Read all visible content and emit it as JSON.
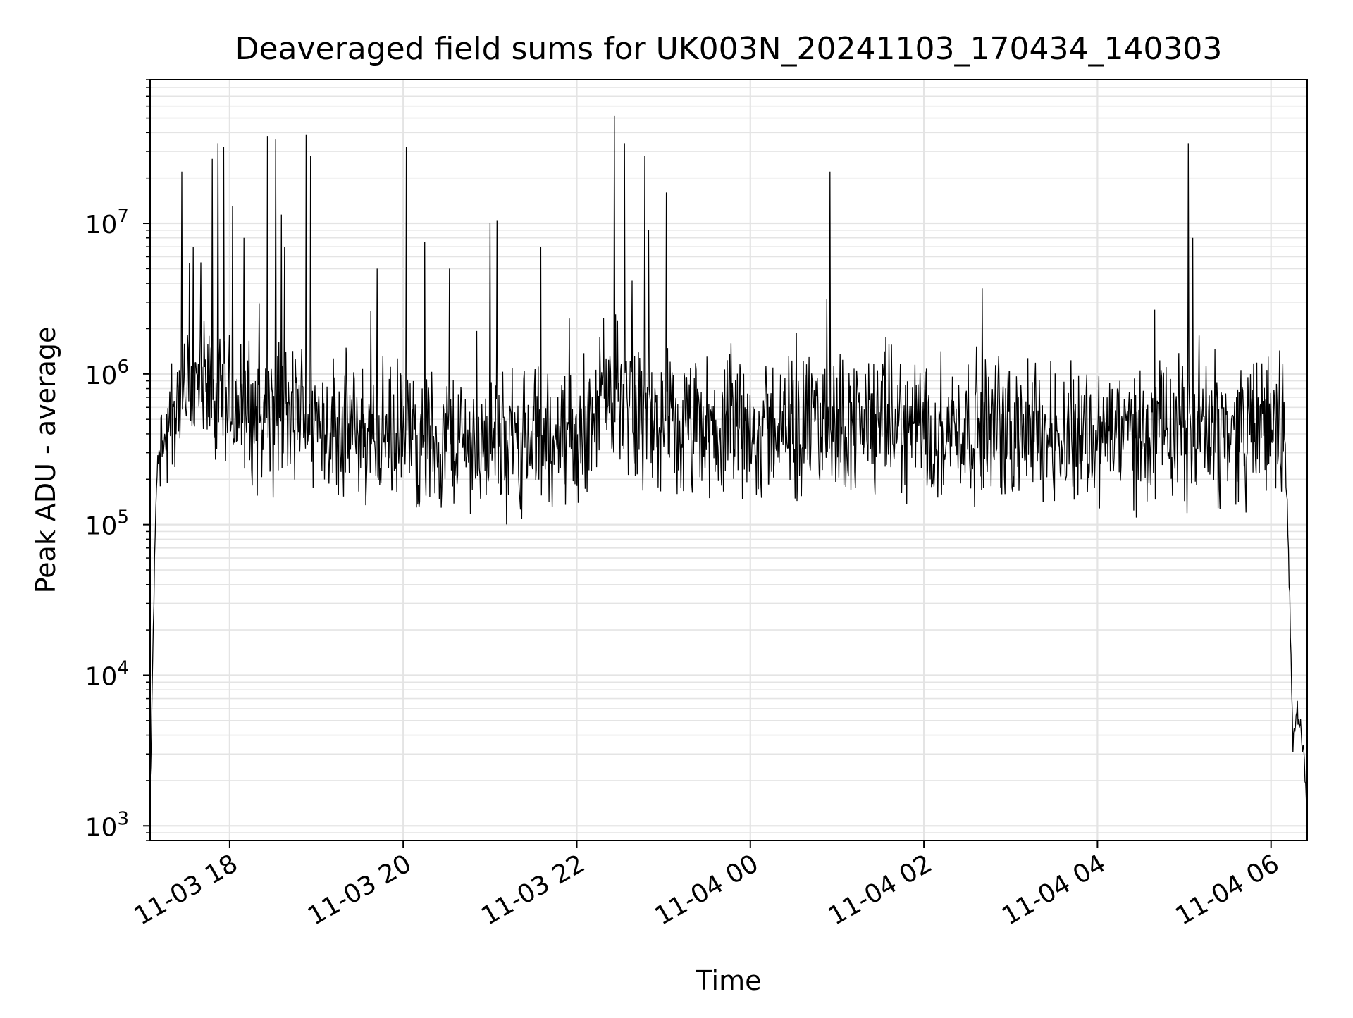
{
  "chart_data": {
    "type": "line",
    "title": "Deaveraged field sums for UK003N_20241103_170434_140303",
    "xlabel": "Time",
    "ylabel": "Peak ADU - average",
    "yscale": "log",
    "ylim": [
      800,
      90000000
    ],
    "xlim": [
      "2024-11-03 17:05",
      "2024-11-04 06:25"
    ],
    "x_tick_labels": [
      "11-03 18",
      "11-03 20",
      "11-03 22",
      "11-04 00",
      "11-04 02",
      "11-04 04",
      "11-04 06"
    ],
    "x_ticks": [
      "2024-11-03 18:00",
      "2024-11-03 20:00",
      "2024-11-03 22:00",
      "2024-11-04 00:00",
      "2024-11-04 02:00",
      "2024-11-04 04:00",
      "2024-11-04 06:00"
    ],
    "y_tick_values": [
      1000,
      10000,
      100000,
      1000000,
      10000000
    ],
    "y_tick_exponents": [
      "3",
      "4",
      "5",
      "6",
      "7"
    ],
    "y_tick_base": "10",
    "grid": true,
    "series_color": "#000000",
    "series": [
      {
        "x": [
          "2024-11-03 17:05",
          "2024-11-03 17:06",
          "2024-11-03 17:07",
          "2024-11-03 17:08",
          "2024-11-03 17:09",
          "2024-11-03 17:10",
          "2024-11-03 17:12",
          "2024-11-03 17:14",
          "2024-11-03 17:17",
          "2024-11-03 17:20",
          "2024-11-03 17:25",
          "2024-11-03 17:30",
          "2024-11-03 17:37",
          "2024-11-03 17:45",
          "2024-11-03 18:00",
          "2024-11-03 18:30",
          "2024-11-03 18:52",
          "2024-11-03 19:30",
          "2024-11-03 20:00",
          "2024-11-03 21:00",
          "2024-11-03 22:00",
          "2024-11-03 22:27",
          "2024-11-03 23:00",
          "2024-11-04 00:00",
          "2024-11-04 01:00",
          "2024-11-04 02:00",
          "2024-11-04 03:00",
          "2024-11-04 04:00",
          "2024-11-04 05:00",
          "2024-11-04 05:40",
          "2024-11-04 06:02",
          "2024-11-04 06:08",
          "2024-11-04 06:11",
          "2024-11-04 06:13",
          "2024-11-04 06:15",
          "2024-11-04 06:18",
          "2024-11-04 06:21",
          "2024-11-04 06:24",
          "2024-11-04 06:25"
        ],
        "y": [
          1900,
          4000,
          16000,
          50000,
          120000,
          250000,
          350000,
          420000,
          450000,
          600000,
          700000,
          650000,
          800000,
          700000,
          600000,
          500000,
          550000,
          400000,
          380000,
          350000,
          380000,
          800000,
          400000,
          420000,
          480000,
          450000,
          430000,
          400000,
          420000,
          430000,
          450000,
          400000,
          150000,
          30000,
          3500,
          6000,
          4000,
          2000,
          1300
        ]
      }
    ],
    "spikes": [
      {
        "x": "2024-11-03 17:27",
        "y": 22000000
      },
      {
        "x": "2024-11-03 17:35",
        "y": 7000000
      },
      {
        "x": "2024-11-03 17:40",
        "y": 5500000
      },
      {
        "x": "2024-11-03 17:48",
        "y": 27000000
      },
      {
        "x": "2024-11-03 17:52",
        "y": 34000000
      },
      {
        "x": "2024-11-03 17:56",
        "y": 32000000
      },
      {
        "x": "2024-11-03 18:02",
        "y": 13000000
      },
      {
        "x": "2024-11-03 18:10",
        "y": 8000000
      },
      {
        "x": "2024-11-03 18:26",
        "y": 38000000
      },
      {
        "x": "2024-11-03 18:32",
        "y": 36000000
      },
      {
        "x": "2024-11-03 18:38",
        "y": 7000000
      },
      {
        "x": "2024-11-03 18:53",
        "y": 39000000
      },
      {
        "x": "2024-11-03 18:56",
        "y": 28000000
      },
      {
        "x": "2024-11-03 19:42",
        "y": 5000000
      },
      {
        "x": "2024-11-03 20:02",
        "y": 32000000
      },
      {
        "x": "2024-11-03 20:15",
        "y": 7500000
      },
      {
        "x": "2024-11-03 20:32",
        "y": 5000000
      },
      {
        "x": "2024-11-03 21:00",
        "y": 10000000
      },
      {
        "x": "2024-11-03 21:05",
        "y": 10500000
      },
      {
        "x": "2024-11-03 21:35",
        "y": 7000000
      },
      {
        "x": "2024-11-03 22:26",
        "y": 52000000
      },
      {
        "x": "2024-11-03 22:33",
        "y": 34000000
      },
      {
        "x": "2024-11-03 22:47",
        "y": 28000000
      },
      {
        "x": "2024-11-03 23:02",
        "y": 16000000
      },
      {
        "x": "2024-11-04 00:55",
        "y": 22000000
      },
      {
        "x": "2024-11-04 05:03",
        "y": 34000000
      },
      {
        "x": "2024-11-04 05:06",
        "y": 8000000
      }
    ]
  }
}
